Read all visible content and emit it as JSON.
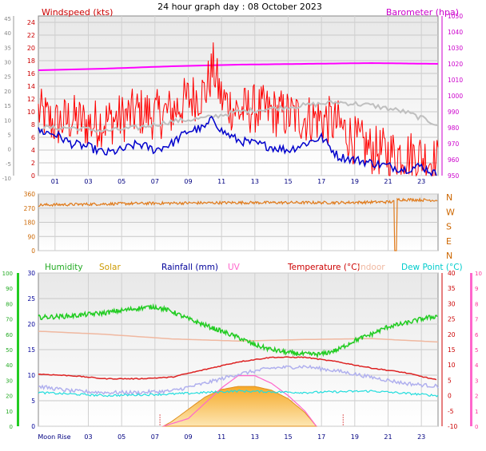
{
  "title": "24 hour graph day : 08 October 2023",
  "colors": {
    "wind": "#ff0000",
    "gust": "#ff0000",
    "wind_avg": "#bfbfbf",
    "wind_blue": "#0000cc",
    "baro": "#ff00ff",
    "dir": "#e07a1a",
    "humidity": "#22cc22",
    "solar": "#f5b942",
    "rain": "#000099",
    "uv": "#ff66cc",
    "temp": "#dd2222",
    "indoor": "#f0b8a0",
    "dew": "#22dddd",
    "uv_axis": "#ff3399",
    "lightgrey": "#b0b0ee"
  },
  "chart_data": [
    {
      "type": "line",
      "name": "wind-baro",
      "left_title": "Windspeed (kts)",
      "right_title": "Barometer (hpa)",
      "left_ticks": [
        "24",
        "22",
        "20",
        "18",
        "16",
        "14",
        "12",
        "10",
        "8",
        "6",
        "4",
        "2",
        "0"
      ],
      "far_left_ticks": [
        "45",
        "40",
        "35",
        "30",
        "25",
        "20",
        "15",
        "10",
        "5",
        "0",
        "-5",
        "-10"
      ],
      "right_ticks": [
        "1050",
        "1040",
        "1030",
        "1020",
        "1010",
        "1000",
        "990",
        "980",
        "970",
        "960",
        "950"
      ],
      "x_ticks": [
        "01",
        "03",
        "05",
        "07",
        "09",
        "11",
        "13",
        "15",
        "17",
        "19",
        "21",
        "23"
      ],
      "ylim": [
        0,
        25
      ],
      "baro_ylim": [
        950,
        1050
      ],
      "series": [
        {
          "key": "baro",
          "x": [
            0,
            4,
            8,
            12,
            16,
            20,
            24
          ],
          "values": [
            1016,
            1017,
            1018.5,
            1019.5,
            1020,
            1020.5,
            1020
          ]
        },
        {
          "key": "wind_avg",
          "x": [
            0,
            2,
            4,
            6,
            8,
            10,
            12,
            14,
            16,
            18,
            20,
            22,
            24
          ],
          "values": [
            7.5,
            7.5,
            7,
            7.5,
            8.5,
            9,
            10,
            10.5,
            11,
            11.5,
            11,
            10,
            8
          ]
        },
        {
          "key": "wind_blue",
          "x": [
            0,
            1,
            2,
            3,
            4,
            5,
            6,
            7,
            8,
            9,
            10,
            10.5,
            11,
            12,
            13,
            14,
            15,
            16,
            17,
            18,
            19,
            20,
            21,
            22,
            23,
            24
          ],
          "values": [
            7,
            6.5,
            5,
            4.5,
            3.5,
            4,
            5,
            4,
            5,
            7,
            7.5,
            9,
            7,
            5.5,
            5,
            4.5,
            4,
            5,
            6,
            3,
            2.5,
            2,
            1.5,
            1,
            1.5,
            0
          ]
        },
        {
          "key": "wind",
          "x": [
            0,
            1,
            2,
            3,
            4,
            5,
            6,
            7,
            8,
            9,
            10,
            10.5,
            11,
            12,
            13,
            14,
            15,
            16,
            17,
            18,
            19,
            20,
            21,
            22,
            23,
            24
          ],
          "values": [
            10,
            8,
            9,
            8,
            8.5,
            9,
            10,
            9.5,
            10,
            12,
            13,
            17,
            12,
            10,
            10.5,
            10,
            9.5,
            9,
            9,
            8,
            5.5,
            4,
            3.5,
            3.5,
            3,
            2
          ]
        }
      ]
    },
    {
      "type": "line",
      "name": "wind-direction",
      "left_ticks": [
        "360",
        "270",
        "180",
        "90",
        "0"
      ],
      "compass": [
        "N",
        "W",
        "S",
        "E",
        "N"
      ],
      "ylim": [
        0,
        360
      ],
      "series": [
        {
          "key": "dir",
          "x": [
            0,
            2,
            4,
            6,
            8,
            10,
            12,
            14,
            16,
            18,
            20,
            21.4,
            21.5,
            22,
            24
          ],
          "values": [
            290,
            295,
            300,
            300,
            305,
            310,
            310,
            310,
            310,
            310,
            310,
            320,
            0,
            320,
            320
          ]
        }
      ]
    },
    {
      "type": "line",
      "name": "weather",
      "legend": [
        "Humidity",
        "Solar",
        "Rainfall (mm)",
        "UV",
        "Temperature (°C)",
        "Indoor",
        "Dew Point (°C)"
      ],
      "left_ticks": [
        "30",
        "25",
        "20",
        "15",
        "10",
        "5",
        "0"
      ],
      "humidity_ticks": [
        "100",
        "90",
        "80",
        "70",
        "60",
        "50",
        "40",
        "30",
        "20",
        "10",
        "0"
      ],
      "right_ticks": [
        "40",
        "35",
        "30",
        "25",
        "20",
        "15",
        "10",
        "5",
        "0",
        "-5",
        "-10"
      ],
      "uv_ticks": [
        "10",
        "9",
        "8",
        "7",
        "6",
        "5",
        "4",
        "3",
        "2",
        "1",
        "0"
      ],
      "x_labels": [
        "Moon Rise",
        "03",
        "05",
        "07",
        "09",
        "11",
        "13",
        "15",
        "17",
        "19",
        "21",
        "23"
      ],
      "temp_ylim": [
        -10,
        40
      ],
      "hum_ylim": [
        0,
        100
      ],
      "series": [
        {
          "key": "humidity",
          "x": [
            0,
            2,
            4,
            6,
            7,
            8,
            9,
            10,
            11,
            12,
            13,
            14,
            15,
            16,
            17,
            18,
            19,
            20,
            21,
            22,
            23,
            24
          ],
          "values": [
            71,
            72,
            74,
            77,
            78,
            75,
            70,
            66,
            62,
            58,
            53,
            50,
            48,
            47,
            47,
            50,
            56,
            60,
            65,
            67,
            70,
            72
          ]
        },
        {
          "key": "indoor",
          "x": [
            0,
            4,
            8,
            12,
            16,
            20,
            24
          ],
          "values": [
            21,
            20,
            18.5,
            17.8,
            18.3,
            18.6,
            17.5
          ]
        },
        {
          "key": "temp",
          "x": [
            0,
            2,
            4,
            6,
            8,
            10,
            12,
            14,
            16,
            18,
            20,
            22,
            24
          ],
          "values": [
            7,
            6.5,
            5.5,
            5.5,
            6,
            8.5,
            11,
            12.5,
            12.5,
            11,
            9,
            7.5,
            5
          ]
        },
        {
          "key": "lightgrey",
          "x": [
            0,
            2,
            4,
            6,
            8,
            10,
            12,
            14,
            16,
            18,
            20,
            22,
            24
          ],
          "values": [
            3,
            1.5,
            1,
            1,
            1.5,
            4,
            7,
            9,
            9.5,
            8,
            6,
            4,
            3
          ]
        },
        {
          "key": "dew",
          "x": [
            0,
            4,
            8,
            12,
            16,
            20,
            24
          ],
          "values": [
            1,
            0,
            0.5,
            1.5,
            1,
            1.5,
            0
          ]
        },
        {
          "key": "solar",
          "x": [
            7.5,
            8,
            9,
            10,
            11,
            12,
            13,
            14,
            15,
            16,
            16.7
          ],
          "values": [
            0,
            60,
            220,
            380,
            480,
            520,
            520,
            470,
            360,
            180,
            0
          ]
        },
        {
          "key": "uv",
          "x": [
            7.5,
            9,
            10,
            11,
            12,
            13,
            14,
            15,
            16,
            16.7
          ],
          "values": [
            0,
            0.5,
            1.5,
            2.5,
            3.3,
            3.3,
            2.8,
            2,
            1,
            0
          ]
        }
      ]
    }
  ]
}
